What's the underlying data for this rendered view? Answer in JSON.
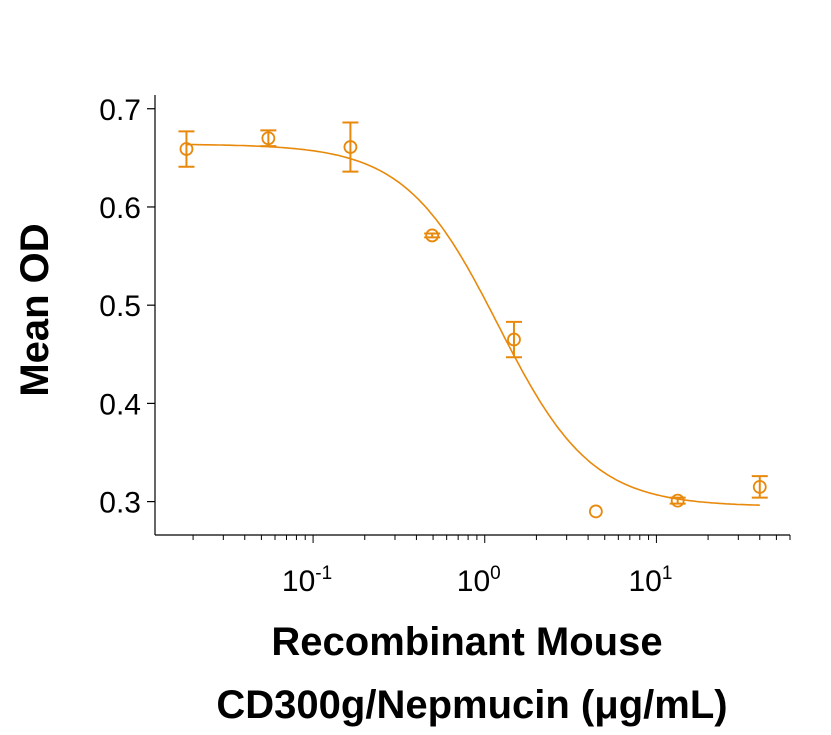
{
  "chart_data": {
    "type": "scatter",
    "title": "",
    "xlabel": [
      "Recombinant Mouse",
      "CD300g/Nepmucin (μg/mL)"
    ],
    "ylabel": "Mean OD",
    "x_scale": "log",
    "xlim": [
      0.012,
      60
    ],
    "ylim": [
      0.266,
      0.714
    ],
    "x_ticks": [
      {
        "value": 0.1,
        "base": "10",
        "exp": "-1"
      },
      {
        "value": 1,
        "base": "10",
        "exp": "0"
      },
      {
        "value": 10,
        "base": "10",
        "exp": "1"
      }
    ],
    "y_ticks": [
      {
        "value": 0.3,
        "label": "0.3"
      },
      {
        "value": 0.4,
        "label": "0.4"
      },
      {
        "value": 0.5,
        "label": "0.5"
      },
      {
        "value": 0.6,
        "label": "0.6"
      },
      {
        "value": 0.7,
        "label": "0.7"
      }
    ],
    "grid": false,
    "color": "#E8890C",
    "series": [
      {
        "x": [
          0.0183,
          0.0549,
          0.165,
          0.494,
          1.48,
          4.44,
          13.3,
          40
        ],
        "y": [
          0.659,
          0.67,
          0.661,
          0.571,
          0.465,
          0.29,
          0.301,
          0.315
        ],
        "error": [
          0.018,
          0.008,
          0.025,
          0.002,
          0.018,
          0,
          0.003,
          0.011
        ],
        "marker": "open-circle"
      }
    ],
    "fit": {
      "type": "4PL",
      "top": 0.664,
      "bottom": 0.295,
      "ec50": 1.2,
      "hill": 1.6
    }
  }
}
